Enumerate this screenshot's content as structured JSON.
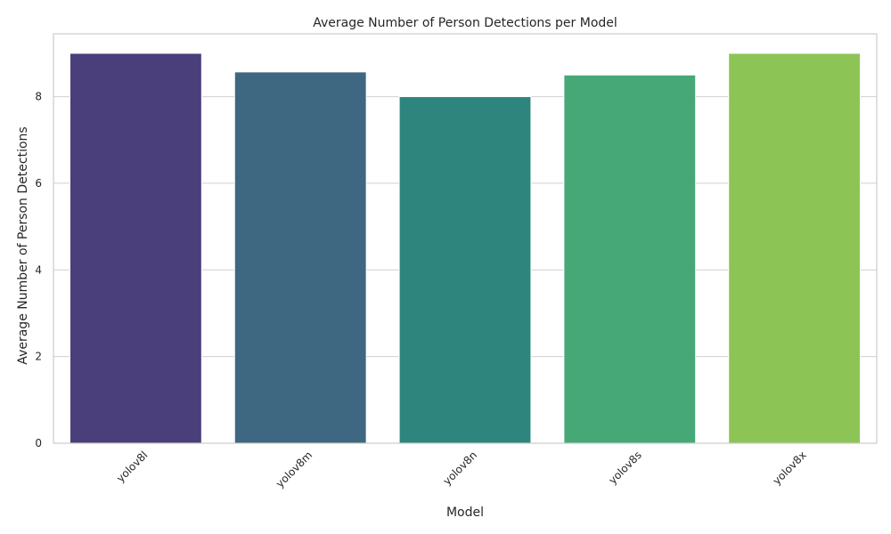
{
  "chart_data": {
    "type": "bar",
    "title": "Average Number of Person Detections per Model",
    "xlabel": "Model",
    "ylabel": "Average Number of Person Detections",
    "categories": [
      "yolov8l",
      "yolov8m",
      "yolov8n",
      "yolov8s",
      "yolov8x"
    ],
    "values": [
      9.0,
      8.57,
      8.0,
      8.5,
      9.0
    ],
    "colors": [
      "#4a3f7a",
      "#3e6781",
      "#2e857e",
      "#46a877",
      "#8cc556"
    ],
    "yticks": [
      0,
      2,
      4,
      6,
      8
    ],
    "ylim": [
      0,
      9.45
    ],
    "grid": true,
    "legend": "none"
  }
}
